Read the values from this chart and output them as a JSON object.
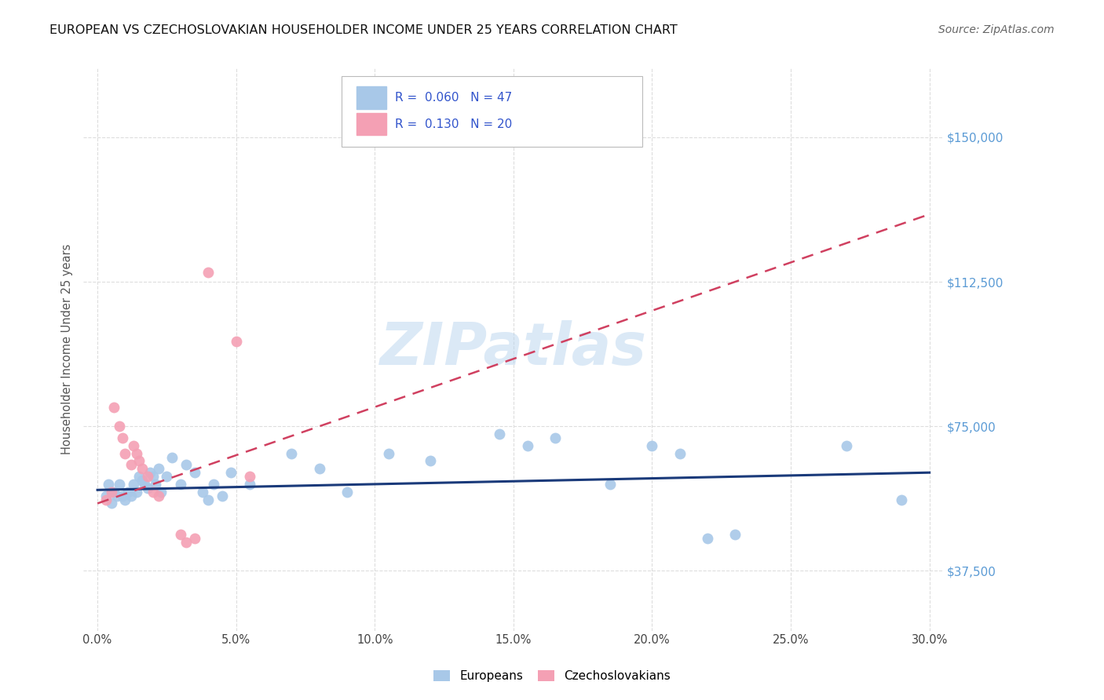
{
  "title": "EUROPEAN VS CZECHOSLOVAKIAN HOUSEHOLDER INCOME UNDER 25 YEARS CORRELATION CHART",
  "source": "Source: ZipAtlas.com",
  "xlabel_ticks": [
    "0.0%",
    "5.0%",
    "10.0%",
    "15.0%",
    "20.0%",
    "25.0%",
    "30.0%"
  ],
  "xlabel_vals": [
    0.0,
    0.05,
    0.1,
    0.15,
    0.2,
    0.25,
    0.3
  ],
  "ylabel_ticks": [
    "$37,500",
    "$75,000",
    "$112,500",
    "$150,000"
  ],
  "ylabel_vals": [
    37500,
    75000,
    112500,
    150000
  ],
  "ylabel_label": "Householder Income Under 25 years",
  "xlim": [
    -0.005,
    0.305
  ],
  "ylim": [
    22000,
    168000
  ],
  "euro_color": "#a8c8e8",
  "euro_line_color": "#1a3a7a",
  "czech_color": "#f4a0b4",
  "czech_line_color": "#d04060",
  "legend_text_color": "#3355cc",
  "legend_euro_label": "Europeans",
  "legend_czech_label": "Czechoslovakians",
  "watermark": "ZIPatlas",
  "grid_color": "#dddddd",
  "euro_x": [
    0.003,
    0.004,
    0.005,
    0.006,
    0.007,
    0.008,
    0.009,
    0.01,
    0.011,
    0.012,
    0.013,
    0.014,
    0.015,
    0.016,
    0.017,
    0.018,
    0.019,
    0.02,
    0.021,
    0.022,
    0.023,
    0.025,
    0.027,
    0.03,
    0.032,
    0.035,
    0.038,
    0.04,
    0.042,
    0.045,
    0.048,
    0.055,
    0.07,
    0.08,
    0.09,
    0.105,
    0.12,
    0.145,
    0.155,
    0.165,
    0.185,
    0.2,
    0.21,
    0.22,
    0.23,
    0.27,
    0.29
  ],
  "euro_y": [
    57000,
    60000,
    55000,
    58000,
    57000,
    60000,
    57000,
    56000,
    58000,
    57000,
    60000,
    58000,
    62000,
    61000,
    60000,
    59000,
    63000,
    62000,
    60000,
    64000,
    58000,
    62000,
    67000,
    60000,
    65000,
    63000,
    58000,
    56000,
    60000,
    57000,
    63000,
    60000,
    68000,
    64000,
    58000,
    68000,
    66000,
    73000,
    70000,
    72000,
    60000,
    70000,
    68000,
    46000,
    47000,
    70000,
    56000
  ],
  "czech_x": [
    0.003,
    0.005,
    0.006,
    0.008,
    0.009,
    0.01,
    0.012,
    0.013,
    0.014,
    0.015,
    0.016,
    0.018,
    0.02,
    0.022,
    0.03,
    0.032,
    0.035,
    0.04,
    0.05,
    0.055
  ],
  "czech_y": [
    56000,
    58000,
    80000,
    75000,
    72000,
    68000,
    65000,
    70000,
    68000,
    66000,
    64000,
    62000,
    58000,
    57000,
    47000,
    45000,
    46000,
    115000,
    97000,
    62000
  ],
  "euro_trendline_x": [
    0.0,
    0.3
  ],
  "euro_trendline_y": [
    58500,
    63000
  ],
  "czech_trendline_x": [
    0.0,
    0.3
  ],
  "czech_trendline_y": [
    55000,
    130000
  ]
}
